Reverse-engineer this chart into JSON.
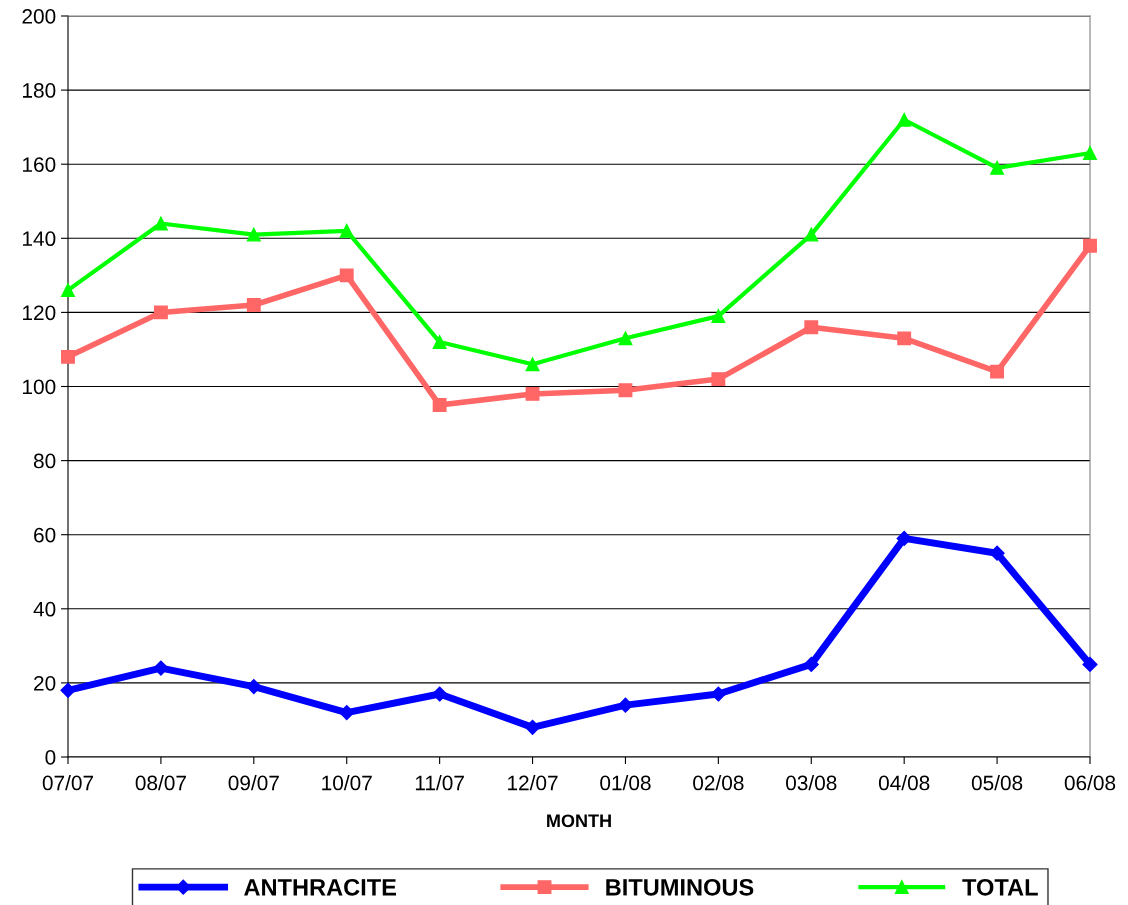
{
  "chart_data": {
    "type": "line",
    "xlabel": "MONTH",
    "categories": [
      "07/07",
      "08/07",
      "09/07",
      "10/07",
      "11/07",
      "12/07",
      "01/08",
      "02/08",
      "03/08",
      "04/08",
      "05/08",
      "06/08"
    ],
    "series": [
      {
        "name": "ANTHRACITE",
        "color": "#0000ff",
        "marker": "diamond",
        "values": [
          18,
          24,
          19,
          12,
          17,
          8,
          14,
          17,
          25,
          59,
          55,
          25
        ]
      },
      {
        "name": "BITUMINOUS",
        "color": "#ff6666",
        "marker": "square",
        "values": [
          108,
          120,
          122,
          130,
          95,
          98,
          99,
          102,
          116,
          113,
          104,
          138
        ]
      },
      {
        "name": "TOTAL",
        "color": "#00ff00",
        "marker": "triangle",
        "values": [
          126,
          144,
          141,
          142,
          112,
          106,
          113,
          119,
          141,
          172,
          159,
          163
        ]
      }
    ],
    "ylim": [
      0,
      200
    ],
    "yticks": [
      0,
      20,
      40,
      60,
      80,
      100,
      120,
      140,
      160,
      180,
      200
    ],
    "grid": "y",
    "legend": "bottom",
    "line_style": "solid"
  }
}
